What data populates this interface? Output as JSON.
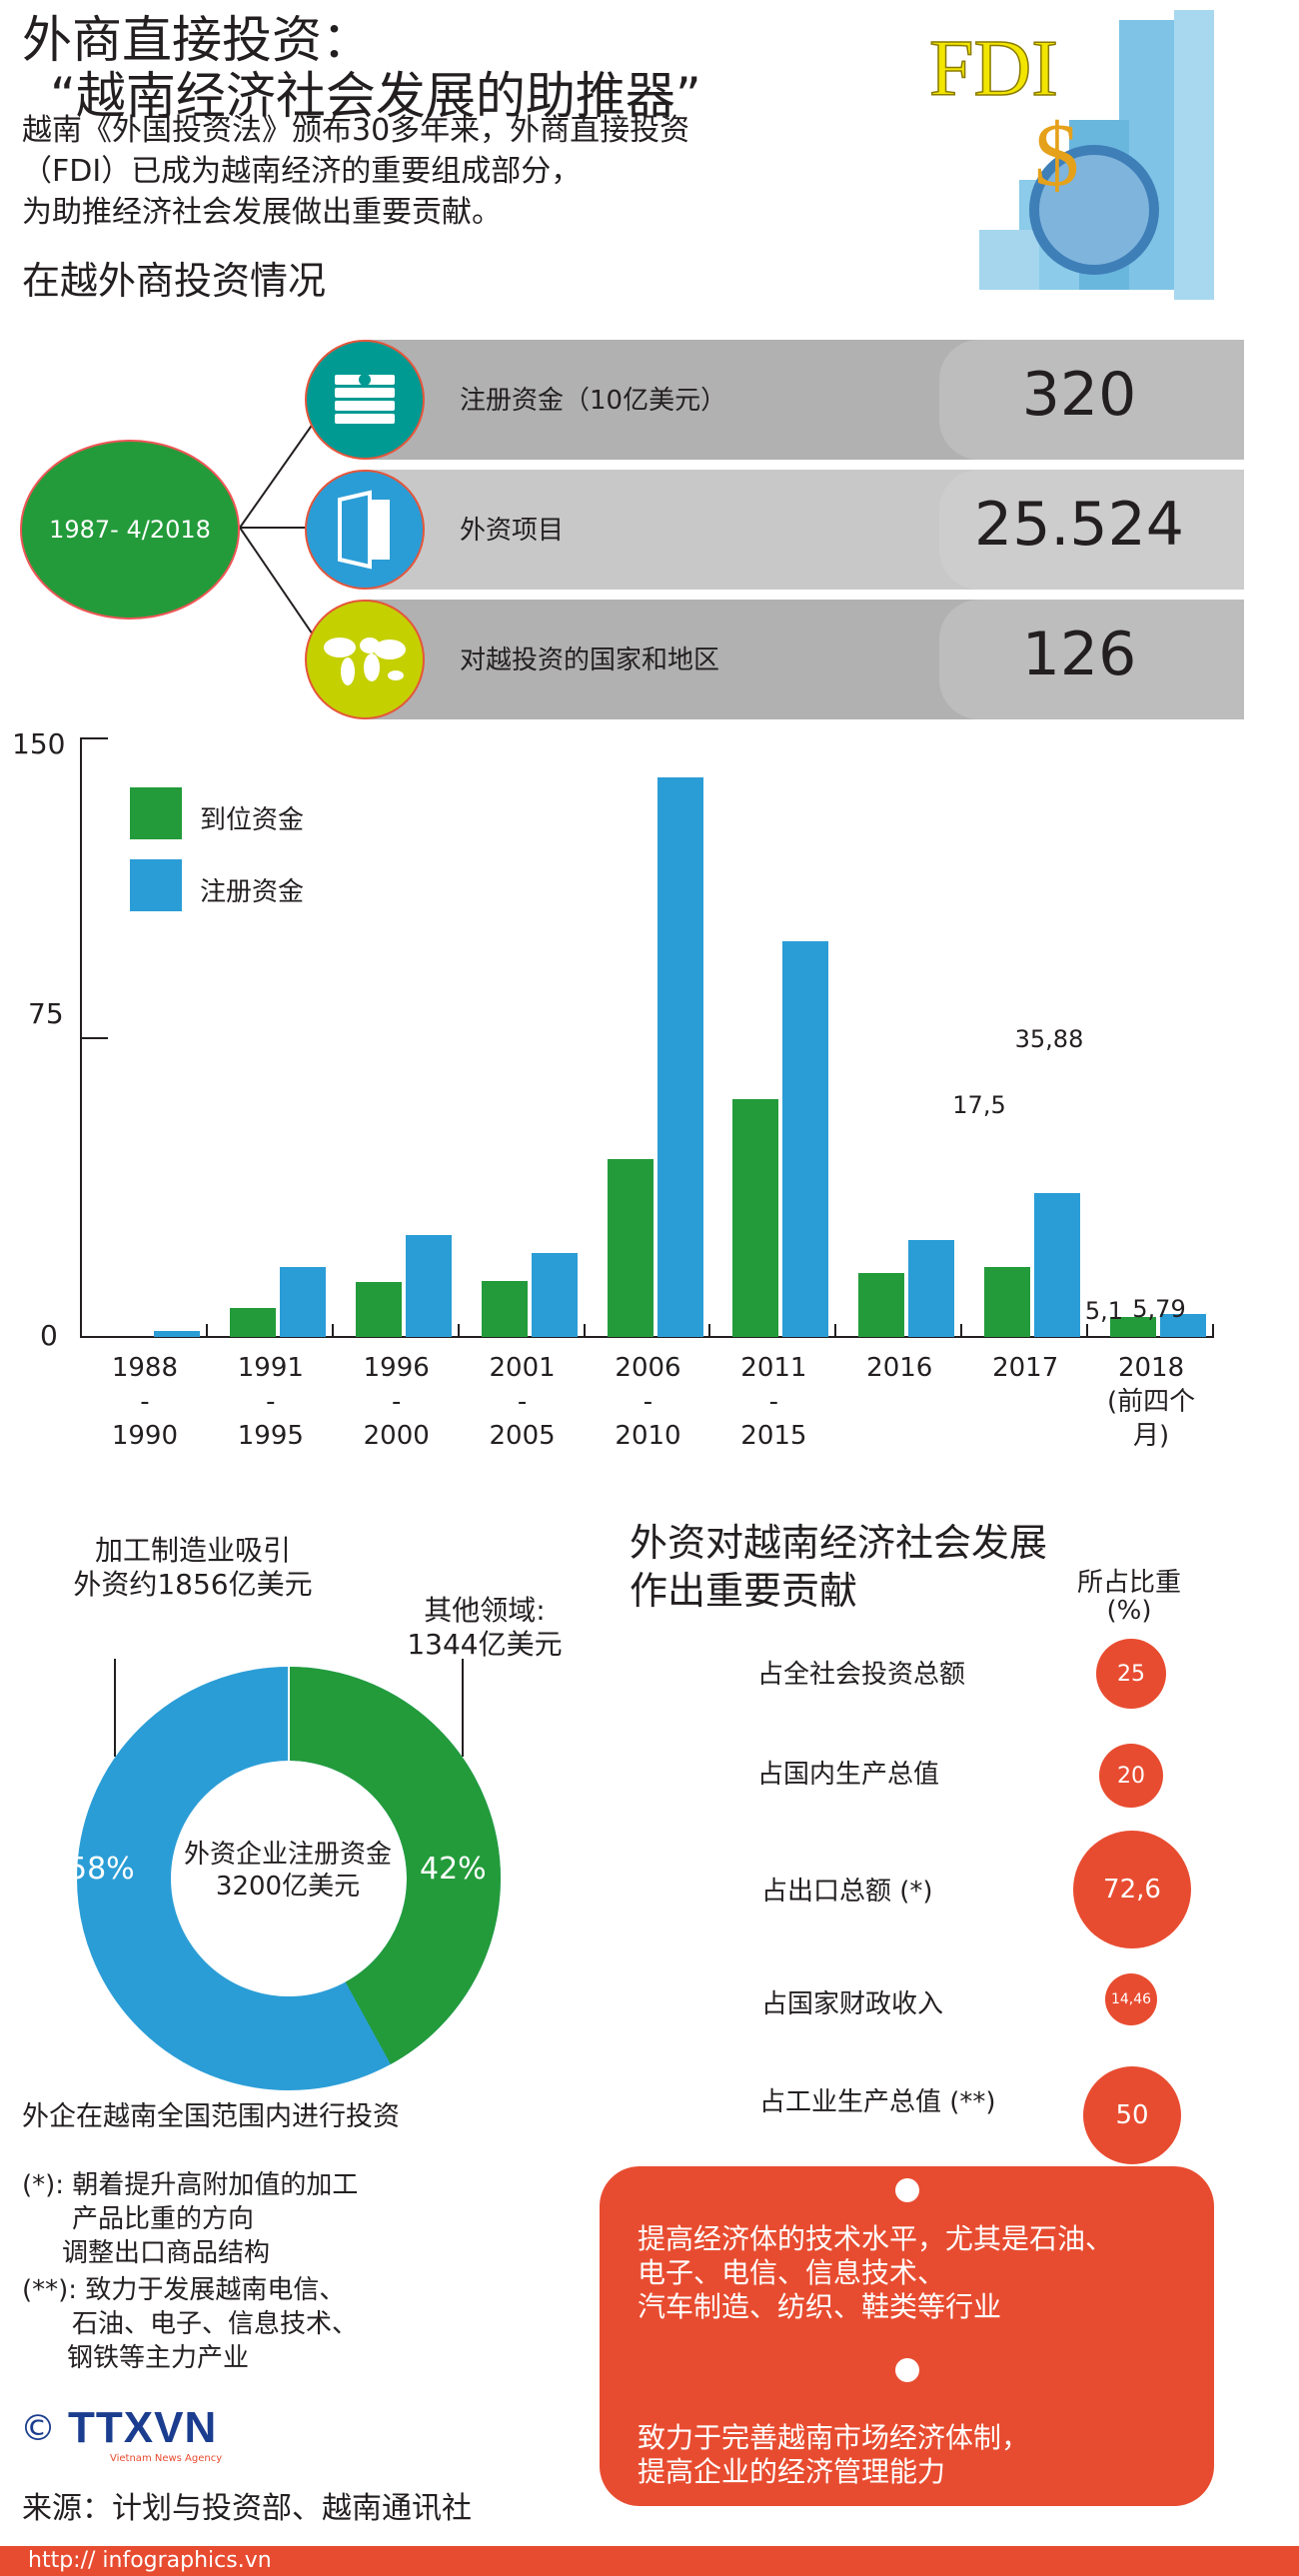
{
  "header": {
    "title_line1": "外商直接投资：",
    "title_line2": "“越南经济社会发展的助推器”",
    "intro_lines": [
      "越南《外国投资法》颁布30多年来，外商直接投资",
      "（FDI）已成为越南经济的重要组成部分，",
      "为助推经济社会发展做出重要贡献。"
    ],
    "hero_text": "FDI"
  },
  "overview": {
    "section_title": "在越外商投资情况",
    "period": "1987- 4/2018",
    "items": [
      {
        "icon": "money-stack-icon",
        "label": "注册资金（10亿美元）",
        "value": "320",
        "icon_color": "#009a93"
      },
      {
        "icon": "project-document-icon",
        "label": "外资项目",
        "value": "25.524",
        "icon_color": "#2b9dd6"
      },
      {
        "icon": "world-map-icon",
        "label": "对越投资的国家和地区",
        "value": "126",
        "icon_color": "#c5d000"
      }
    ]
  },
  "chart_data": [
    {
      "type": "bar",
      "title": "",
      "xlabel": "",
      "ylabel": "",
      "ylim": [
        0,
        150
      ],
      "yticks": [
        "0",
        "75",
        "150"
      ],
      "legend_position": "top-left",
      "categories": [
        "1988-1990",
        "1991-1995",
        "1996-2000",
        "2001-2005",
        "2006-2010",
        "2011-2015",
        "2016",
        "2017",
        "2018 (前四个月)"
      ],
      "category_lines": [
        [
          "1988",
          "-",
          "1990"
        ],
        [
          "1991",
          "-",
          "1995"
        ],
        [
          "1996",
          "-",
          "2000"
        ],
        [
          "2001",
          "-",
          "2005"
        ],
        [
          "2006",
          "-",
          "2010"
        ],
        [
          "2011",
          "-",
          "2015"
        ],
        [
          "2016"
        ],
        [
          "2017"
        ],
        [
          "2018",
          "(前四个月)"
        ]
      ],
      "series": [
        {
          "name": "到位资金",
          "color": "#239b3a",
          "values": [
            0,
            7.2,
            13.7,
            14,
            44.6,
            59.6,
            15.9,
            17.5,
            5.1
          ]
        },
        {
          "name": "注册资金",
          "color": "#2b9dd6",
          "values": [
            1.5,
            17.4,
            25.5,
            20.9,
            140,
            99,
            24.3,
            35.88,
            5.79
          ]
        }
      ],
      "annotations": [
        {
          "category": "2017",
          "series": "到位资金",
          "text": "17,5"
        },
        {
          "category": "2017",
          "series": "注册资金",
          "text": "35,88"
        },
        {
          "category": "2018 (前四个月)",
          "series": "到位资金",
          "text": "5,1"
        },
        {
          "category": "2018 (前四个月)",
          "series": "注册资金",
          "text": "5,79"
        }
      ]
    },
    {
      "type": "pie",
      "title": "外资企业注册资金 3200亿美元",
      "categories": [
        "加工制造业",
        "其他领域"
      ],
      "values": [
        58,
        42
      ],
      "colors": [
        "#2b9dd6",
        "#239b3a"
      ],
      "labels": [
        "58%",
        "42%"
      ],
      "annotations": [
        "加工制造业吸引外资约1856亿美元",
        "其他领域: 1344亿美元"
      ]
    },
    {
      "type": "bubble",
      "title": "外资对越南经济社会发展作出重要贡献",
      "ylabel": "所占比重 (%)",
      "categories": [
        "占全社会投资总额",
        "占国内生产总值",
        "占出口总额 (*)",
        "占国家财政收入",
        "占工业生产总值 (**)"
      ],
      "values": [
        25,
        20,
        72.6,
        14.46,
        50
      ]
    }
  ],
  "bar_chart": {
    "y_tick_150": "150",
    "y_tick_75": "75",
    "y_tick_0": "0",
    "legend": [
      {
        "label": "到位资金"
      },
      {
        "label": "注册资金"
      }
    ],
    "labels": {
      "v2017g": "17,5",
      "v2017b": "35,88",
      "v2018g": "5,1",
      "v2018b": "5,79"
    },
    "x": [
      {
        "l1": "1988",
        "l2": "-",
        "l3": "1990"
      },
      {
        "l1": "1991",
        "l2": "-",
        "l3": "1995"
      },
      {
        "l1": "1996",
        "l2": "-",
        "l3": "2000"
      },
      {
        "l1": "2001",
        "l2": "-",
        "l3": "2005"
      },
      {
        "l1": "2006",
        "l2": "-",
        "l3": "2010"
      },
      {
        "l1": "2011",
        "l2": "-",
        "l3": "2015"
      },
      {
        "l1": "2016",
        "l2": "",
        "l3": ""
      },
      {
        "l1": "2017",
        "l2": "",
        "l3": ""
      },
      {
        "l1": "2018",
        "l2": "(前四个月)",
        "l3": ""
      }
    ]
  },
  "donut": {
    "left_note_l1": "加工制造业吸引",
    "left_note_l2": "外资约1856亿美元",
    "right_note_l1": "其他领域:",
    "right_note_l2": "1344亿美元",
    "center_l1": "外资企业注册资金",
    "center_l2": "3200亿美元",
    "pct_blue": "58%",
    "pct_green": "42%",
    "caption": "外企在越南全国范围内进行投资"
  },
  "footnotes": {
    "n1_mark": "(*):",
    "n1_lines": [
      "朝着提升高附加值的加工",
      "产品比重的方向",
      "调整出口商品结构"
    ],
    "n2_mark": "(**):",
    "n2_lines": [
      "致力于发展越南电信、",
      "石油、电子、信息技术、",
      "钢铁等主力产业"
    ]
  },
  "contrib": {
    "title_l1": "外资对越南经济社会发展",
    "title_l2": "作出重要贡献",
    "col_l1": "所占比重",
    "col_l2": "(%)",
    "items": [
      {
        "label": "占全社会投资总额",
        "value": "25"
      },
      {
        "label": "占国内生产总值",
        "value": "20"
      },
      {
        "label": "占出口总额 (*)",
        "value": "72,6"
      },
      {
        "label": "占国家财政收入",
        "value": "14,46"
      },
      {
        "label": "占工业生产总值 (**)",
        "value": "50"
      }
    ],
    "box_p1": [
      "提高经济体的技术水平，尤其是石油、",
      "电子、电信、信息技术、",
      "汽车制造、纺织、鞋类等行业"
    ],
    "box_p2": [
      "致力于完善越南市场经济体制，",
      "提高企业的经济管理能力"
    ]
  },
  "brand": {
    "copyright": "©",
    "logo": "TTXVN",
    "logo_sub": "Vietnam News Agency",
    "source": "来源：计划与投资部、越南通讯社",
    "url": "http:// infographics.vn"
  }
}
